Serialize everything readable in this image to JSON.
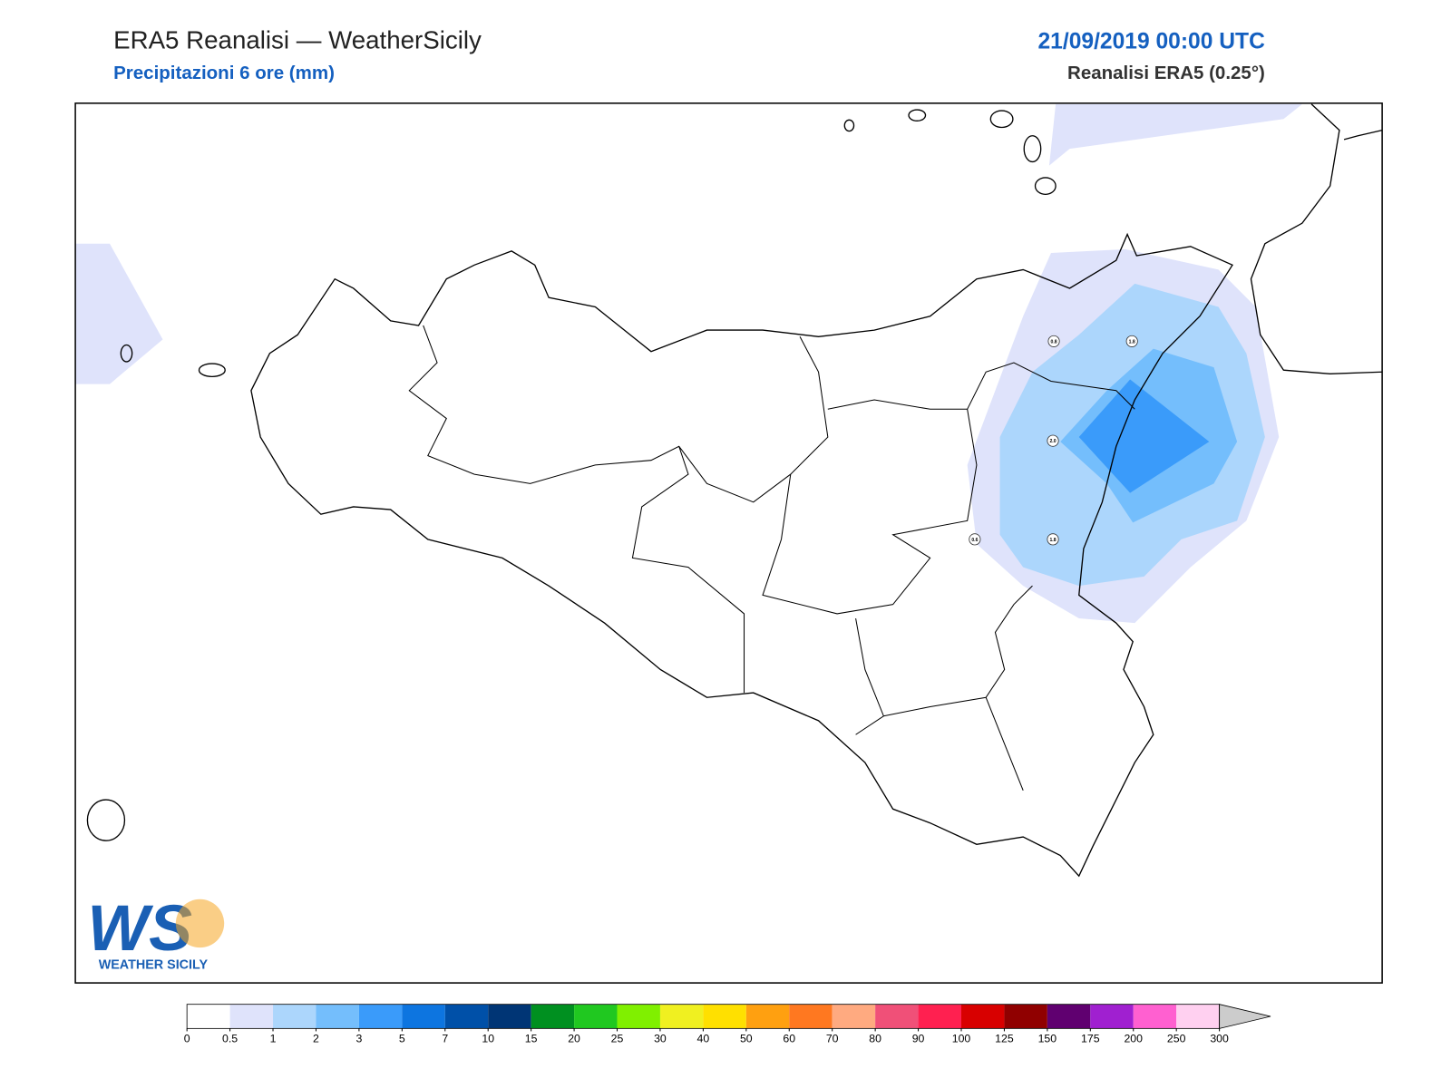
{
  "header": {
    "title": "ERA5 Reanalisi — WeatherSicily",
    "subtitle": "Precipitazioni 6 ore (mm)",
    "datetime": "21/09/2019 00:00 UTC",
    "model": "Reanalisi ERA5 (0.25°)"
  },
  "stations": [
    {
      "label": "0.8"
    },
    {
      "label": "1.8"
    },
    {
      "label": "2.0"
    },
    {
      "label": "0.6"
    },
    {
      "label": "1.8"
    }
  ],
  "colorbar": {
    "ticks": [
      0,
      0.5,
      1,
      2,
      3,
      5,
      7,
      10,
      15,
      20,
      25,
      30,
      40,
      50,
      60,
      70,
      80,
      90,
      100,
      125,
      150,
      175,
      200,
      250,
      300
    ],
    "colors": [
      "#ffffff",
      "#dfe3fb",
      "#acd6fc",
      "#74befc",
      "#3a9bfa",
      "#0d75e0",
      "#0050a8",
      "#003575",
      "#009020",
      "#20c820",
      "#80f000",
      "#f0f020",
      "#ffe000",
      "#ffa010",
      "#ff7820",
      "#ffaa80",
      "#f05078",
      "#ff2050",
      "#d80000",
      "#900000",
      "#600070",
      "#a020d0",
      "#ff60d0",
      "#ffd0f0"
    ],
    "extend_color": "#cccccc"
  },
  "logo": {
    "mark": "WS",
    "name": "WEATHER SICILY"
  }
}
